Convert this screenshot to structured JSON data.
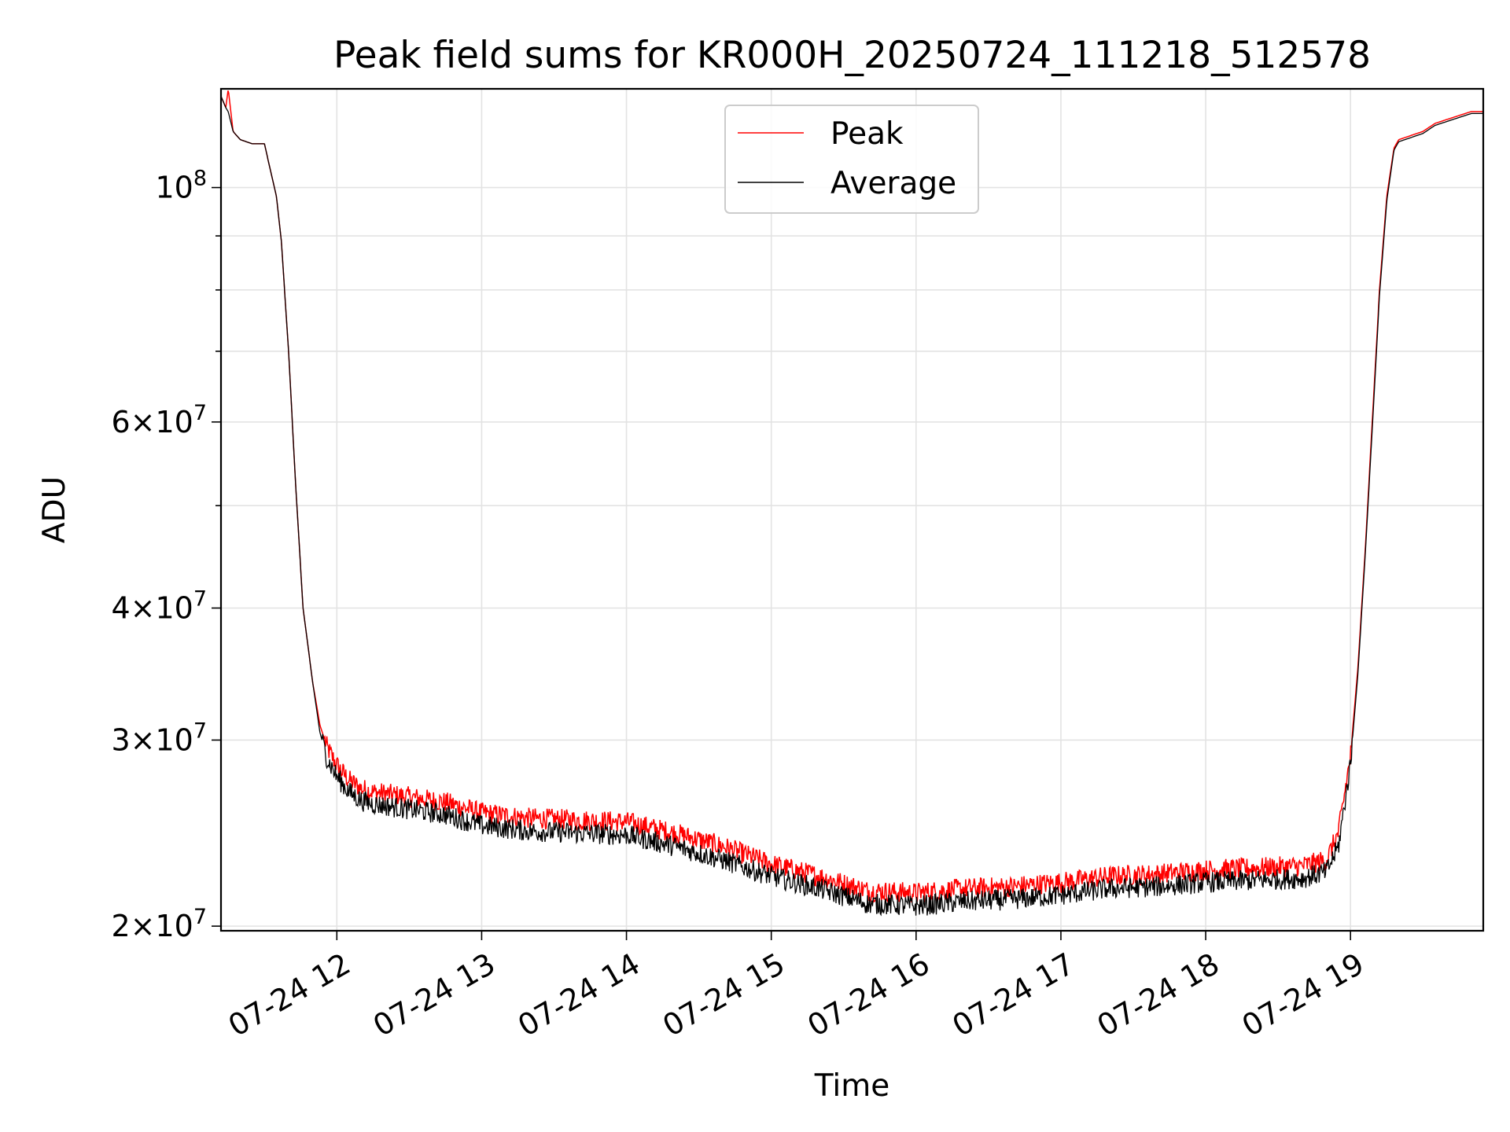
{
  "chart_data": {
    "type": "line",
    "title": "Peak field sums for KR000H_20250724_111218_512578",
    "xlabel": "Time",
    "ylabel": "ADU",
    "y_scale": "log",
    "ylim": [
      19800000,
      124000000
    ],
    "xlim": [
      "2025-07-24 11:12",
      "2025-07-24 19:55"
    ],
    "grid": true,
    "legend_position": "top-center",
    "x_ticks": [
      {
        "time": "2025-07-24 12:00",
        "label": "07-24 12"
      },
      {
        "time": "2025-07-24 13:00",
        "label": "07-24 13"
      },
      {
        "time": "2025-07-24 14:00",
        "label": "07-24 14"
      },
      {
        "time": "2025-07-24 15:00",
        "label": "07-24 15"
      },
      {
        "time": "2025-07-24 16:00",
        "label": "07-24 16"
      },
      {
        "time": "2025-07-24 17:00",
        "label": "07-24 17"
      },
      {
        "time": "2025-07-24 18:00",
        "label": "07-24 18"
      },
      {
        "time": "2025-07-24 19:00",
        "label": "07-24 19"
      }
    ],
    "y_ticks": [
      {
        "value": 20000000,
        "mant": "2",
        "exp": "7"
      },
      {
        "value": 30000000,
        "mant": "3",
        "exp": "7"
      },
      {
        "value": 40000000,
        "mant": "4",
        "exp": "7"
      },
      {
        "value": 60000000,
        "mant": "6",
        "exp": "7"
      },
      {
        "value": 100000000,
        "mant": "",
        "exp": "8"
      }
    ],
    "y_minor_ticks": [
      50000000,
      70000000,
      80000000,
      90000000
    ],
    "series": [
      {
        "name": "Peak",
        "color": "#ff0000",
        "x": [
          "2025-07-24 11:12",
          "2025-07-24 11:14",
          "2025-07-24 11:15",
          "2025-07-24 11:17",
          "2025-07-24 11:20",
          "2025-07-24 11:25",
          "2025-07-24 11:30",
          "2025-07-24 11:32",
          "2025-07-24 11:35",
          "2025-07-24 11:37",
          "2025-07-24 11:40",
          "2025-07-24 11:43",
          "2025-07-24 11:46",
          "2025-07-24 11:50",
          "2025-07-24 11:53",
          "2025-07-24 11:56",
          "2025-07-24 12:00",
          "2025-07-24 12:05",
          "2025-07-24 12:10",
          "2025-07-24 12:15",
          "2025-07-24 12:30",
          "2025-07-24 12:45",
          "2025-07-24 13:00",
          "2025-07-24 13:20",
          "2025-07-24 13:40",
          "2025-07-24 14:00",
          "2025-07-24 14:20",
          "2025-07-24 14:40",
          "2025-07-24 15:00",
          "2025-07-24 15:20",
          "2025-07-24 15:40",
          "2025-07-24 16:00",
          "2025-07-24 16:20",
          "2025-07-24 16:40",
          "2025-07-24 17:00",
          "2025-07-24 17:20",
          "2025-07-24 17:40",
          "2025-07-24 18:00",
          "2025-07-24 18:20",
          "2025-07-24 18:40",
          "2025-07-24 18:50",
          "2025-07-24 18:55",
          "2025-07-24 19:00",
          "2025-07-24 19:03",
          "2025-07-24 19:06",
          "2025-07-24 19:09",
          "2025-07-24 19:12",
          "2025-07-24 19:15",
          "2025-07-24 19:18",
          "2025-07-24 19:20",
          "2025-07-24 19:25",
          "2025-07-24 19:30",
          "2025-07-24 19:35",
          "2025-07-24 19:40",
          "2025-07-24 19:45",
          "2025-07-24 19:50",
          "2025-07-24 19:55"
        ],
        "y": [
          122000000,
          119000000,
          124000000,
          113000000,
          111000000,
          110000000,
          110000000,
          105000000,
          98000000,
          89000000,
          70000000,
          52000000,
          40000000,
          34000000,
          31000000,
          29500000,
          28400000,
          27500000,
          27000000,
          26800000,
          26500000,
          26200000,
          25600000,
          25300000,
          25200000,
          25100000,
          24500000,
          23800000,
          22900000,
          22300000,
          21600000,
          21500000,
          21700000,
          21800000,
          22000000,
          22300000,
          22400000,
          22600000,
          22700000,
          22800000,
          23100000,
          24500000,
          29000000,
          35000000,
          45000000,
          60000000,
          80000000,
          98000000,
          109000000,
          111000000,
          112000000,
          113000000,
          115000000,
          116000000,
          117000000,
          118000000,
          118000000
        ]
      },
      {
        "name": "Average",
        "color": "#000000",
        "x": [
          "2025-07-24 11:12",
          "2025-07-24 11:14",
          "2025-07-24 11:15",
          "2025-07-24 11:17",
          "2025-07-24 11:20",
          "2025-07-24 11:25",
          "2025-07-24 11:30",
          "2025-07-24 11:32",
          "2025-07-24 11:35",
          "2025-07-24 11:37",
          "2025-07-24 11:40",
          "2025-07-24 11:43",
          "2025-07-24 11:46",
          "2025-07-24 11:50",
          "2025-07-24 11:53",
          "2025-07-24 11:56",
          "2025-07-24 12:00",
          "2025-07-24 12:05",
          "2025-07-24 12:10",
          "2025-07-24 12:15",
          "2025-07-24 12:30",
          "2025-07-24 12:45",
          "2025-07-24 13:00",
          "2025-07-24 13:20",
          "2025-07-24 13:40",
          "2025-07-24 14:00",
          "2025-07-24 14:20",
          "2025-07-24 14:40",
          "2025-07-24 15:00",
          "2025-07-24 15:20",
          "2025-07-24 15:40",
          "2025-07-24 16:00",
          "2025-07-24 16:20",
          "2025-07-24 16:40",
          "2025-07-24 17:00",
          "2025-07-24 17:20",
          "2025-07-24 17:40",
          "2025-07-24 18:00",
          "2025-07-24 18:20",
          "2025-07-24 18:40",
          "2025-07-24 18:50",
          "2025-07-24 18:55",
          "2025-07-24 19:00",
          "2025-07-24 19:03",
          "2025-07-24 19:06",
          "2025-07-24 19:09",
          "2025-07-24 19:12",
          "2025-07-24 19:15",
          "2025-07-24 19:18",
          "2025-07-24 19:20",
          "2025-07-24 19:25",
          "2025-07-24 19:30",
          "2025-07-24 19:35",
          "2025-07-24 19:40",
          "2025-07-24 19:45",
          "2025-07-24 19:50",
          "2025-07-24 19:55"
        ],
        "y": [
          122000000,
          119000000,
          118000000,
          113000000,
          111000000,
          110000000,
          110000000,
          105000000,
          98000000,
          89000000,
          70000000,
          52000000,
          40000000,
          34000000,
          30500000,
          28800000,
          27700000,
          26800000,
          26300000,
          26100000,
          25800000,
          25500000,
          24900000,
          24600000,
          24500000,
          24400000,
          23800000,
          23100000,
          22300000,
          21700000,
          21000000,
          20900000,
          21100000,
          21200000,
          21400000,
          21700000,
          21800000,
          22000000,
          22100000,
          22200000,
          22500000,
          23800000,
          28500000,
          34500000,
          44500000,
          59000000,
          79000000,
          97000000,
          108500000,
          110500000,
          111500000,
          112500000,
          114500000,
          115500000,
          116500000,
          117500000,
          117500000
        ]
      }
    ]
  }
}
